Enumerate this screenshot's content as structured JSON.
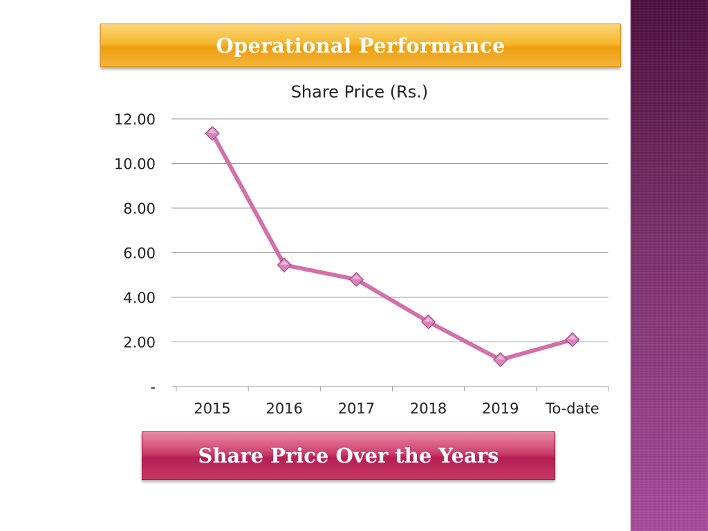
{
  "slide": {
    "title": "Operational Performance",
    "footer": "Share Price Over the Years"
  },
  "colors": {
    "title_banner": "#f4ad22",
    "footer_banner": "#c13363",
    "line": "#d36fa9",
    "marker": "#d783bb",
    "side_strip": "#7a2f6a"
  },
  "chart_data": {
    "type": "line",
    "title": "Share Price (Rs.)",
    "categories": [
      "2015",
      "2016",
      "2017",
      "2018",
      "2019",
      "To-date"
    ],
    "series": [
      {
        "values": [
          11.35,
          5.45,
          4.8,
          2.9,
          1.2,
          2.1
        ]
      }
    ],
    "ylim": [
      0,
      12
    ],
    "yticks": [
      0,
      2,
      4,
      6,
      8,
      10,
      12
    ],
    "ytick_labels": [
      "-",
      "2.00",
      "4.00",
      "6.00",
      "8.00",
      "10.00",
      "12.00"
    ],
    "grid": true,
    "legend": "none",
    "marker": "diamond"
  }
}
